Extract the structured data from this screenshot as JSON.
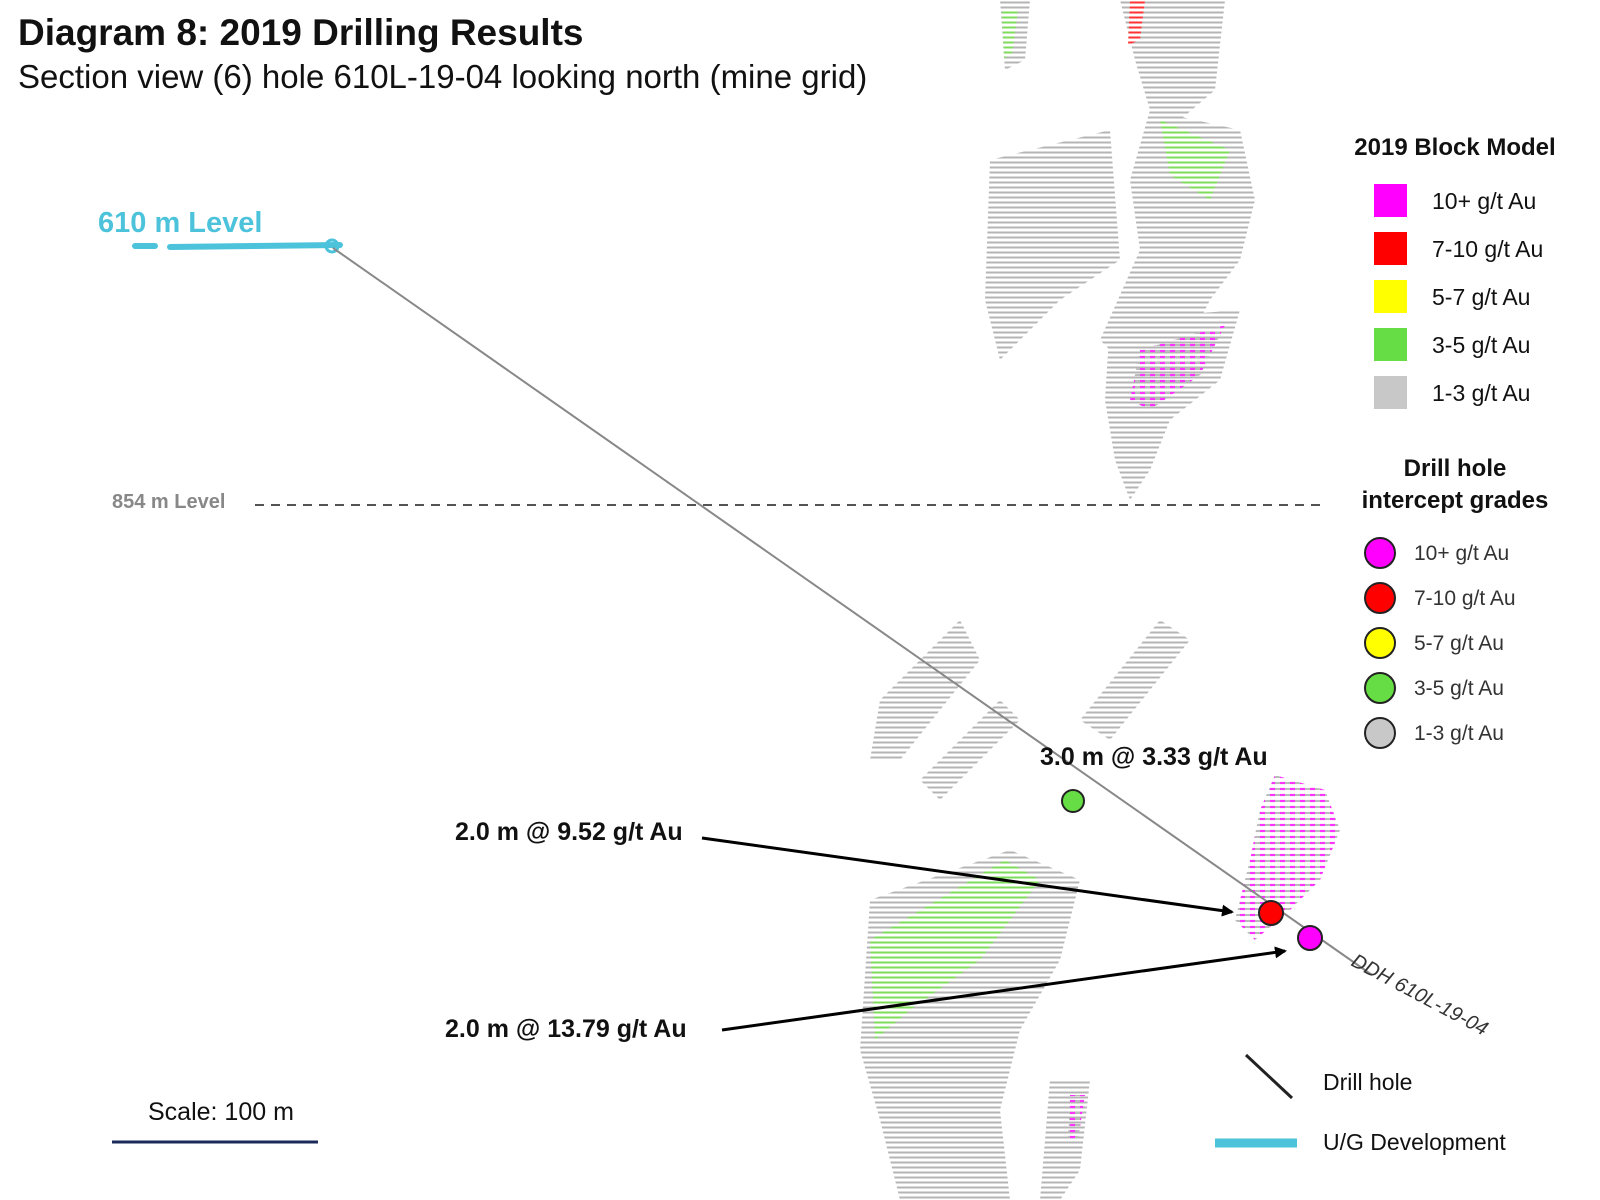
{
  "header": {
    "title": "Diagram 8: 2019 Drilling Results",
    "subtitle": "Section view (6) hole 610L-19-04 looking north (mine grid)"
  },
  "levels": {
    "upper": "610 m Level",
    "middle": "854 m Level"
  },
  "drill_hole_label": "DDH 610L-19-04",
  "intercepts": [
    {
      "text": "3.0 m @ 3.33 g/t Au",
      "grade_class": "3-5 g/t Au"
    },
    {
      "text": "2.0 m @ 9.52 g/t Au",
      "grade_class": "7-10 g/t Au"
    },
    {
      "text": "2.0 m @ 13.79 g/t Au",
      "grade_class": "10+ g/t Au"
    }
  ],
  "block_model_legend": {
    "title": "2019 Block Model",
    "items": [
      {
        "label": "10+ g/t Au",
        "color": "#ff00ff"
      },
      {
        "label": "7-10 g/t Au",
        "color": "#ff0000"
      },
      {
        "label": "5-7 g/t Au",
        "color": "#ffff00"
      },
      {
        "label": "3-5 g/t Au",
        "color": "#66dd44"
      },
      {
        "label": "1-3 g/t Au",
        "color": "#c8c8c8"
      }
    ]
  },
  "intercept_legend": {
    "title_line1": "Drill hole",
    "title_line2": "intercept grades",
    "items": [
      {
        "label": "10+ g/t Au",
        "color": "#ff00ff"
      },
      {
        "label": "7-10 g/t Au",
        "color": "#ff0000"
      },
      {
        "label": "5-7 g/t Au",
        "color": "#ffff00"
      },
      {
        "label": "3-5 g/t Au",
        "color": "#66dd44"
      },
      {
        "label": "1-3 g/t Au",
        "color": "#c8c8c8"
      }
    ]
  },
  "line_legend": {
    "drill_hole": "Drill hole",
    "ug_development": "U/G Development"
  },
  "scale_label": "Scale: 100 m",
  "colors": {
    "ug_development": "#4cc3db",
    "drill_hole": "#888888",
    "arrow": "#000000"
  }
}
